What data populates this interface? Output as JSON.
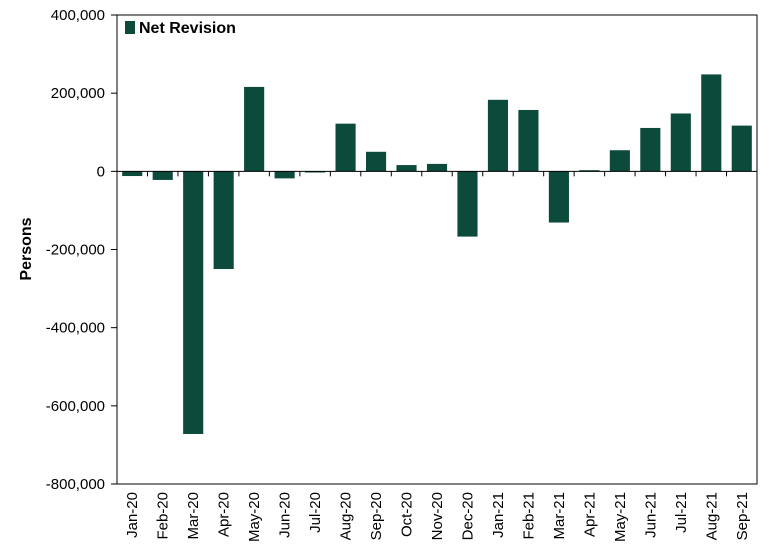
{
  "chart_data": {
    "type": "bar",
    "ylabel": "Persons",
    "ylim": [
      -800000,
      400000
    ],
    "yticks": [
      400000,
      200000,
      0,
      -200000,
      -400000,
      -600000,
      -800000
    ],
    "ytick_labels": [
      "400,000",
      "200,000",
      "0",
      "-200,000",
      "-400,000",
      "-600,000",
      "-800,000"
    ],
    "legend_position": "top-left",
    "grid": false,
    "categories": [
      "Jan-20",
      "Feb-20",
      "Mar-20",
      "Apr-20",
      "May-20",
      "Jun-20",
      "Jul-20",
      "Aug-20",
      "Sep-20",
      "Oct-20",
      "Nov-20",
      "Dec-20",
      "Jan-21",
      "Feb-21",
      "Mar-21",
      "Apr-21",
      "May-21",
      "Jun-21",
      "Jul-21",
      "Aug-21",
      "Sep-21"
    ],
    "series": [
      {
        "name": "Net Revision",
        "color": "#0c4a3c",
        "values": [
          -12000,
          -22000,
          -672000,
          -250000,
          216000,
          -18000,
          -3000,
          122000,
          50000,
          16000,
          19000,
          -167000,
          183000,
          157000,
          -131000,
          3000,
          54000,
          111000,
          148000,
          248000,
          117000
        ]
      }
    ]
  }
}
